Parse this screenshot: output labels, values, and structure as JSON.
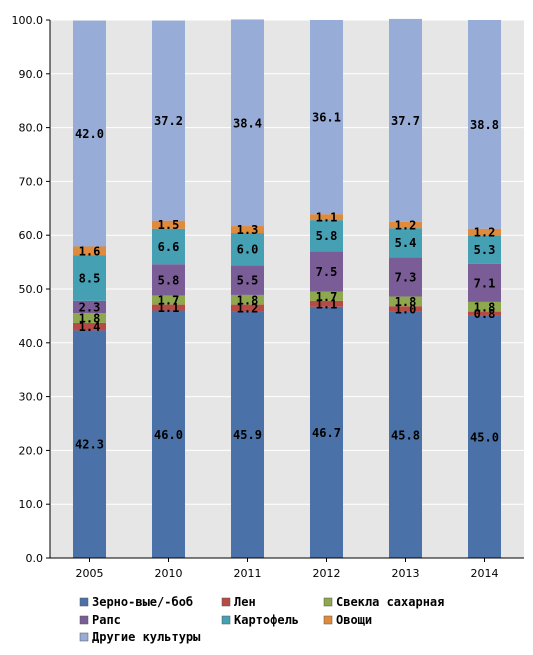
{
  "chart_data": {
    "type": "bar",
    "stacked": true,
    "categories": [
      "2005",
      "2010",
      "2011",
      "2012",
      "2013",
      "2014"
    ],
    "ylim": [
      0,
      100
    ],
    "yticks": [
      "0.0",
      "10.0",
      "20.0",
      "30.0",
      "40.0",
      "50.0",
      "60.0",
      "70.0",
      "80.0",
      "90.0",
      "100.0"
    ],
    "grid": true,
    "legend_position": "bottom",
    "series": [
      {
        "name": "Зерно-вые/-боб",
        "color": "#4a72a8",
        "values": [
          42.3,
          46.0,
          45.9,
          46.7,
          45.8,
          45.0
        ]
      },
      {
        "name": "Лен",
        "color": "#b84a45",
        "values": [
          1.4,
          1.1,
          1.2,
          1.1,
          1.0,
          0.8
        ]
      },
      {
        "name": "Свекла сахарная",
        "color": "#8ea84d",
        "values": [
          1.8,
          1.7,
          1.8,
          1.7,
          1.8,
          1.8
        ]
      },
      {
        "name": "Рапс",
        "color": "#7a5c96",
        "values": [
          2.3,
          5.8,
          5.5,
          7.5,
          7.3,
          7.1
        ]
      },
      {
        "name": "Картофель",
        "color": "#46a0b4",
        "values": [
          8.5,
          6.6,
          6.0,
          5.8,
          5.4,
          5.3
        ]
      },
      {
        "name": "Овощи",
        "color": "#e08a3c",
        "values": [
          1.6,
          1.5,
          1.3,
          1.1,
          1.2,
          1.2
        ]
      },
      {
        "name": "Другие культуры",
        "color": "#97acd6",
        "values": [
          42.0,
          37.2,
          38.4,
          36.1,
          37.7,
          38.8
        ]
      }
    ],
    "data_labels": [
      [
        "42.3",
        "46.0",
        "45.9",
        "46.7",
        "45.8",
        "45.0"
      ],
      [
        "1.4",
        "1.1",
        "1.2",
        "1.1",
        "1.0",
        "0.8"
      ],
      [
        "1.8",
        "1.7",
        "1.8",
        "1.7",
        "1.8",
        "1.8"
      ],
      [
        "2.3",
        "5.8",
        "5.5",
        "7.5",
        "7.3",
        "7.1"
      ],
      [
        "8.5",
        "6.6",
        "6.0",
        "5.8",
        "5.4",
        "5.3"
      ],
      [
        "1.6",
        "1.5",
        "1.3",
        "1.1",
        "1.2",
        "1.2"
      ],
      [
        "42.0",
        "37.2",
        "38.4",
        "36.1",
        "37.7",
        "38.8"
      ]
    ],
    "colors": {
      "plot_background": "#e6e6e6",
      "gridline": "#ffffff",
      "axis": "#000000"
    }
  }
}
